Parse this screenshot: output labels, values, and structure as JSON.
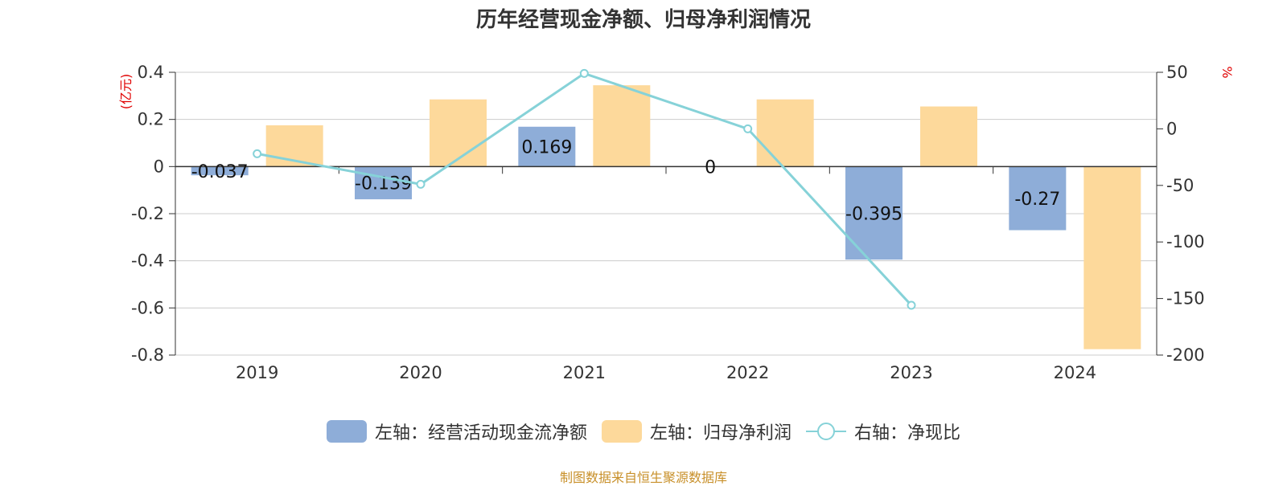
{
  "chart_data": {
    "type": "bar",
    "title": "历年经营现金净额、归母净利润情况",
    "categories": [
      "2019",
      "2020",
      "2021",
      "2022",
      "2023",
      "2024"
    ],
    "left_axis": {
      "unit": "(亿元)",
      "ylim": [
        -0.8,
        0.4
      ],
      "ticks": [
        "0.4",
        "0.2",
        "0",
        "-0.2",
        "-0.4",
        "-0.6",
        "-0.8"
      ],
      "tick_values": [
        0.4,
        0.2,
        0,
        -0.2,
        -0.4,
        -0.6,
        -0.8
      ]
    },
    "right_axis": {
      "unit": "%",
      "ylim": [
        -200,
        50
      ],
      "ticks": [
        "50",
        "0",
        "-50",
        "-100",
        "-150",
        "-200"
      ],
      "tick_values": [
        50,
        0,
        -50,
        -100,
        -150,
        -200
      ]
    },
    "series": [
      {
        "name": "左轴：经营活动现金流净额",
        "type": "bar",
        "axis": "left",
        "color": "#8eadd8",
        "values": [
          -0.037,
          -0.139,
          0.169,
          0,
          -0.395,
          -0.27
        ],
        "labels": [
          "-0.037",
          "-0.139",
          "0.169",
          "0",
          "-0.395",
          "-0.27"
        ]
      },
      {
        "name": "左轴：归母净利润",
        "type": "bar",
        "axis": "left",
        "color": "#fdd99b",
        "values": [
          0.175,
          0.285,
          0.345,
          0.285,
          0.255,
          -0.775
        ]
      },
      {
        "name": "右轴：净现比",
        "type": "line",
        "axis": "right",
        "color": "#86d2d8",
        "values": [
          -22,
          -49,
          49,
          0,
          -156,
          null
        ]
      }
    ],
    "grid": true,
    "legend_position": "bottom"
  },
  "legend": {
    "items": [
      "左轴：经营活动现金流净额",
      "左轴：归母净利润",
      "右轴：净现比"
    ]
  },
  "source_text": "制图数据来自恒生聚源数据库"
}
